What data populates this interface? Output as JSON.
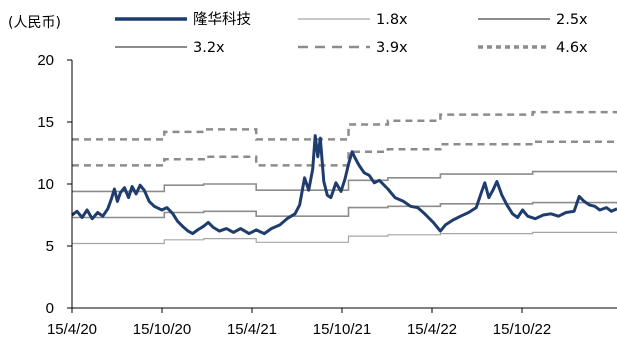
{
  "chart_data": {
    "type": "line",
    "unit_label": "(人民币)",
    "x_ticks": [
      "15/4/20",
      "15/10/20",
      "15/4/21",
      "15/10/21",
      "15/4/22",
      "15/10/22"
    ],
    "x_range": [
      "2020-04-15",
      "2023-03-31"
    ],
    "ylim": [
      0,
      20
    ],
    "y_ticks": [
      0,
      5,
      10,
      15,
      20
    ],
    "grid": false,
    "legend_position": "top",
    "price_series": {
      "name": "隆华科技",
      "color": "#1f3c6e",
      "points": [
        [
          "2020-04-15",
          7.5
        ],
        [
          "2020-04-25",
          7.8
        ],
        [
          "2020-05-05",
          7.3
        ],
        [
          "2020-05-15",
          7.9
        ],
        [
          "2020-05-25",
          7.2
        ],
        [
          "2020-06-05",
          7.7
        ],
        [
          "2020-06-15",
          7.4
        ],
        [
          "2020-06-25",
          8.0
        ],
        [
          "2020-07-02",
          8.8
        ],
        [
          "2020-07-08",
          9.6
        ],
        [
          "2020-07-14",
          8.6
        ],
        [
          "2020-07-20",
          9.3
        ],
        [
          "2020-07-28",
          9.7
        ],
        [
          "2020-08-05",
          8.9
        ],
        [
          "2020-08-12",
          9.8
        ],
        [
          "2020-08-20",
          9.2
        ],
        [
          "2020-08-28",
          9.9
        ],
        [
          "2020-09-05",
          9.5
        ],
        [
          "2020-09-15",
          8.6
        ],
        [
          "2020-09-25",
          8.2
        ],
        [
          "2020-10-10",
          7.9
        ],
        [
          "2020-10-20",
          8.1
        ],
        [
          "2020-11-01",
          7.6
        ],
        [
          "2020-11-10",
          7.0
        ],
        [
          "2020-11-20",
          6.6
        ],
        [
          "2020-12-01",
          6.2
        ],
        [
          "2020-12-10",
          6.0
        ],
        [
          "2020-12-20",
          6.3
        ],
        [
          "2021-01-01",
          6.6
        ],
        [
          "2021-01-10",
          6.9
        ],
        [
          "2021-01-20",
          6.5
        ],
        [
          "2021-02-01",
          6.2
        ],
        [
          "2021-02-15",
          6.4
        ],
        [
          "2021-03-01",
          6.1
        ],
        [
          "2021-03-15",
          6.4
        ],
        [
          "2021-04-01",
          6.0
        ],
        [
          "2021-04-15",
          6.3
        ],
        [
          "2021-05-01",
          6.0
        ],
        [
          "2021-05-15",
          6.4
        ],
        [
          "2021-06-01",
          6.7
        ],
        [
          "2021-06-15",
          7.2
        ],
        [
          "2021-07-01",
          7.6
        ],
        [
          "2021-07-10",
          8.3
        ],
        [
          "2021-07-20",
          10.5
        ],
        [
          "2021-07-28",
          9.5
        ],
        [
          "2021-08-05",
          11.2
        ],
        [
          "2021-08-10",
          13.9
        ],
        [
          "2021-08-15",
          12.2
        ],
        [
          "2021-08-20",
          13.7
        ],
        [
          "2021-08-27",
          10.2
        ],
        [
          "2021-09-03",
          9.1
        ],
        [
          "2021-09-10",
          8.9
        ],
        [
          "2021-09-20",
          10.1
        ],
        [
          "2021-09-30",
          9.4
        ],
        [
          "2021-10-08",
          10.4
        ],
        [
          "2021-10-15",
          11.6
        ],
        [
          "2021-10-22",
          12.6
        ],
        [
          "2021-10-28",
          12.1
        ],
        [
          "2021-11-05",
          11.5
        ],
        [
          "2021-11-15",
          10.9
        ],
        [
          "2021-11-25",
          10.7
        ],
        [
          "2021-12-05",
          10.1
        ],
        [
          "2021-12-15",
          10.3
        ],
        [
          "2022-01-01",
          9.6
        ],
        [
          "2022-01-15",
          8.9
        ],
        [
          "2022-02-01",
          8.6
        ],
        [
          "2022-02-15",
          8.2
        ],
        [
          "2022-03-01",
          8.1
        ],
        [
          "2022-03-15",
          7.6
        ],
        [
          "2022-04-01",
          6.9
        ],
        [
          "2022-04-15",
          6.2
        ],
        [
          "2022-04-25",
          6.7
        ],
        [
          "2022-05-10",
          7.1
        ],
        [
          "2022-05-25",
          7.4
        ],
        [
          "2022-06-10",
          7.7
        ],
        [
          "2022-06-25",
          8.1
        ],
        [
          "2022-07-05",
          9.3
        ],
        [
          "2022-07-12",
          10.1
        ],
        [
          "2022-07-20",
          8.9
        ],
        [
          "2022-07-28",
          9.5
        ],
        [
          "2022-08-05",
          10.2
        ],
        [
          "2022-08-15",
          9.1
        ],
        [
          "2022-08-25",
          8.3
        ],
        [
          "2022-09-05",
          7.6
        ],
        [
          "2022-09-15",
          7.3
        ],
        [
          "2022-09-25",
          7.9
        ],
        [
          "2022-10-05",
          7.4
        ],
        [
          "2022-10-20",
          7.2
        ],
        [
          "2022-11-05",
          7.5
        ],
        [
          "2022-11-20",
          7.6
        ],
        [
          "2022-12-05",
          7.4
        ],
        [
          "2022-12-20",
          7.7
        ],
        [
          "2023-01-05",
          7.8
        ],
        [
          "2023-01-15",
          9.0
        ],
        [
          "2023-01-25",
          8.6
        ],
        [
          "2023-02-05",
          8.3
        ],
        [
          "2023-02-15",
          8.2
        ],
        [
          "2023-02-25",
          7.9
        ],
        [
          "2023-03-10",
          8.1
        ],
        [
          "2023-03-20",
          7.8
        ],
        [
          "2023-03-31",
          8.0
        ]
      ]
    },
    "pb_series": [
      {
        "name": "1.8x",
        "color": "#a6a6a6",
        "style": "solid",
        "points": [
          [
            "2020-04-15",
            5.2
          ],
          [
            "2020-10-15",
            5.5
          ],
          [
            "2021-01-01",
            5.6
          ],
          [
            "2021-04-15",
            5.3
          ],
          [
            "2021-10-15",
            5.8
          ],
          [
            "2022-01-01",
            5.9
          ],
          [
            "2022-04-15",
            6.0
          ],
          [
            "2022-10-15",
            6.1
          ],
          [
            "2023-03-31",
            6.0
          ]
        ]
      },
      {
        "name": "2.5x",
        "color": "#8c8c8c",
        "style": "solid",
        "points": [
          [
            "2020-04-15",
            7.3
          ],
          [
            "2020-10-15",
            7.7
          ],
          [
            "2021-01-01",
            7.8
          ],
          [
            "2021-04-15",
            7.4
          ],
          [
            "2021-10-15",
            8.1
          ],
          [
            "2022-01-01",
            8.2
          ],
          [
            "2022-04-15",
            8.4
          ],
          [
            "2022-10-15",
            8.5
          ],
          [
            "2023-03-31",
            8.4
          ]
        ]
      },
      {
        "name": "3.2x",
        "color": "#8c8c8c",
        "style": "solid",
        "points": [
          [
            "2020-04-15",
            9.4
          ],
          [
            "2020-10-15",
            9.9
          ],
          [
            "2021-01-01",
            10.0
          ],
          [
            "2021-04-15",
            9.5
          ],
          [
            "2021-10-15",
            10.3
          ],
          [
            "2022-01-01",
            10.5
          ],
          [
            "2022-04-15",
            10.8
          ],
          [
            "2022-10-15",
            11.0
          ],
          [
            "2023-03-31",
            10.9
          ]
        ]
      },
      {
        "name": "3.9x",
        "color": "#8c8c8c",
        "style": "dashed",
        "points": [
          [
            "2020-04-15",
            11.5
          ],
          [
            "2020-10-15",
            12.0
          ],
          [
            "2021-01-01",
            12.2
          ],
          [
            "2021-04-15",
            11.5
          ],
          [
            "2021-10-15",
            12.6
          ],
          [
            "2022-01-01",
            12.8
          ],
          [
            "2022-04-15",
            13.2
          ],
          [
            "2022-10-15",
            13.4
          ],
          [
            "2023-03-31",
            13.3
          ]
        ]
      },
      {
        "name": "4.6x",
        "color": "#8c8c8c",
        "style": "dashed",
        "points": [
          [
            "2020-04-15",
            13.6
          ],
          [
            "2020-10-15",
            14.2
          ],
          [
            "2021-01-01",
            14.4
          ],
          [
            "2021-04-15",
            13.6
          ],
          [
            "2021-10-15",
            14.8
          ],
          [
            "2022-01-01",
            15.1
          ],
          [
            "2022-04-15",
            15.6
          ],
          [
            "2022-10-15",
            15.8
          ],
          [
            "2023-03-31",
            15.7
          ]
        ]
      }
    ]
  }
}
